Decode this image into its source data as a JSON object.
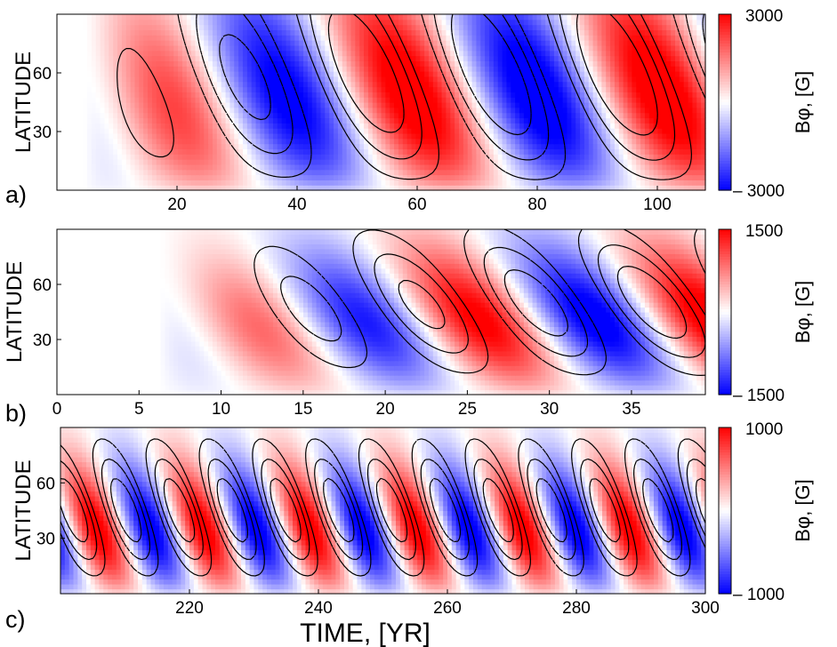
{
  "colors": {
    "positive": "#ff0000",
    "negative": "#0000ff",
    "zero": "#ffffff",
    "contour": "#000000"
  },
  "chart_data": [
    {
      "type": "heatmap",
      "panel_label": "a)",
      "ylabel": "LATITUDE",
      "xlabel": "",
      "xlim": [
        0,
        108
      ],
      "ylim": [
        0,
        90
      ],
      "xticks": [
        20,
        40,
        60,
        80,
        100
      ],
      "yticks": [
        30,
        60
      ],
      "colorbar": {
        "label": "Bφ, [G]",
        "max": 3000,
        "min": -3000,
        "max_label": "3000",
        "min_label": "– 3000"
      },
      "field": {
        "period_yr": 42,
        "t0_yr": 13,
        "drift": 0.6,
        "amplitude": 3000,
        "startup_yr": 14,
        "lat_center": 35,
        "lat_width": 75,
        "contour_lat_shift": 40,
        "contour_phase": 0.9
      }
    },
    {
      "type": "heatmap",
      "panel_label": "b)",
      "ylabel": "LATITUDE",
      "xlabel": "",
      "xlim": [
        0,
        39.5
      ],
      "ylim": [
        0,
        90
      ],
      "xticks": [
        0,
        5,
        10,
        15,
        20,
        25,
        30,
        35
      ],
      "yticks": [
        30,
        60
      ],
      "colorbar": {
        "label": "Bφ, [G]",
        "max": 1500,
        "min": -1500,
        "max_label": "1500",
        "min_label": "– 1500"
      },
      "field": {
        "period_yr": 14.2,
        "t0_yr": 11,
        "drift": 1.0,
        "amplitude": 1500,
        "startup_yr": 8,
        "lat_center": 35,
        "lat_width": 45,
        "contour_lat_shift": 25,
        "contour_phase": 1.3
      }
    },
    {
      "type": "heatmap",
      "panel_label": "c)",
      "ylabel": "LATITUDE",
      "xlabel": "TIME, [YR]",
      "xlim": [
        200,
        300
      ],
      "ylim": [
        0,
        90
      ],
      "xticks": [
        220,
        240,
        260,
        280,
        300
      ],
      "yticks": [
        30,
        60
      ],
      "colorbar": {
        "label": "Bφ, [G]",
        "max": 1000,
        "min": -1000,
        "max_label": "1000",
        "min_label": "– 1000"
      },
      "field": {
        "period_yr": 16.5,
        "t0_yr": 205,
        "drift": 1.1,
        "amplitude": 1000,
        "startup_yr": 0,
        "lat_center": 28,
        "lat_width": 40,
        "contour_lat_shift": 30,
        "contour_phase": 1.1
      }
    }
  ]
}
